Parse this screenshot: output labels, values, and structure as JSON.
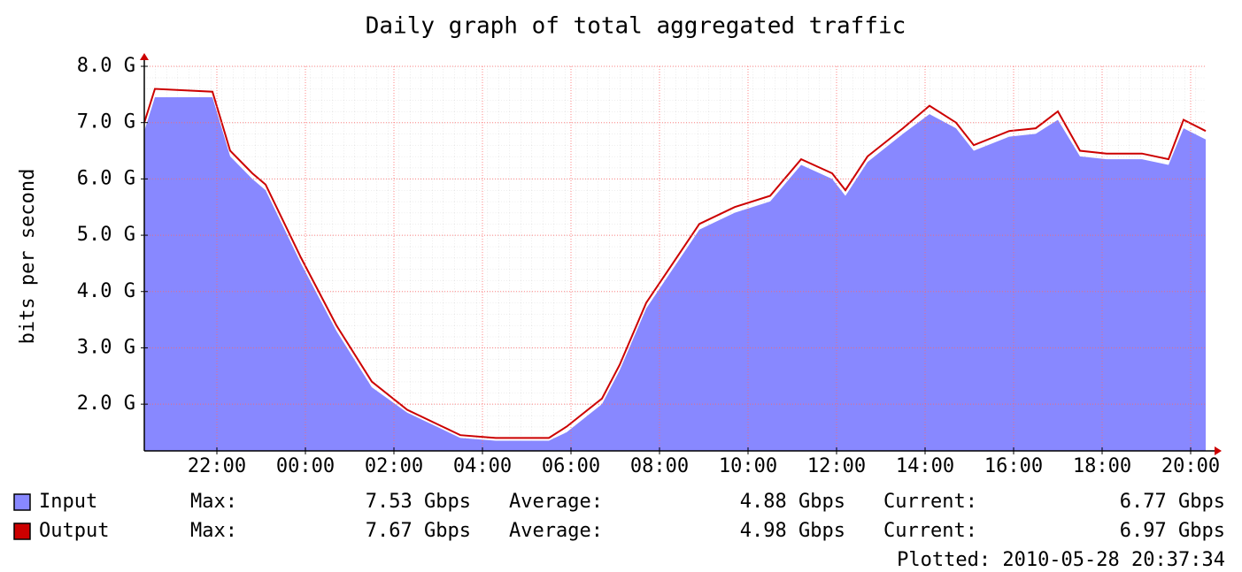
{
  "chart_data": {
    "type": "area-line",
    "title": "Daily graph of total aggregated traffic",
    "y_label": "bits per second",
    "x": [
      20.36,
      20.6,
      21.9,
      22.3,
      22.8,
      23.1,
      23.9,
      24.7,
      25.5,
      26.3,
      27.1,
      27.5,
      28.3,
      29.5,
      29.9,
      30.7,
      31.1,
      31.7,
      32.3,
      32.9,
      33.7,
      34.5,
      35.2,
      35.9,
      36.2,
      36.7,
      37.5,
      38.1,
      38.7,
      39.1,
      39.9,
      40.5,
      41.0,
      41.5,
      42.1,
      42.9,
      43.5,
      43.84,
      44.34
    ],
    "series": [
      {
        "name": "Input",
        "color": "#8888ff",
        "style": "area",
        "values": [
          6.85,
          7.45,
          7.45,
          6.4,
          6.0,
          5.8,
          4.5,
          3.3,
          2.3,
          1.85,
          1.55,
          1.4,
          1.35,
          1.35,
          1.5,
          2.0,
          2.6,
          3.7,
          4.4,
          5.1,
          5.4,
          5.6,
          6.25,
          6.0,
          5.7,
          6.3,
          6.8,
          7.15,
          6.9,
          6.5,
          6.75,
          6.8,
          7.05,
          6.4,
          6.35,
          6.35,
          6.25,
          6.9,
          6.7
        ],
        "stats": [
          "Max:",
          "7.53 Gbps",
          "Average:",
          "4.88 Gbps",
          "Current:",
          "6.77 Gbps"
        ]
      },
      {
        "name": "Output",
        "color": "#cc0000",
        "style": "line",
        "values": [
          7.0,
          7.6,
          7.55,
          6.5,
          6.1,
          5.9,
          4.6,
          3.4,
          2.4,
          1.9,
          1.6,
          1.45,
          1.4,
          1.4,
          1.6,
          2.1,
          2.7,
          3.8,
          4.5,
          5.2,
          5.5,
          5.7,
          6.35,
          6.1,
          5.8,
          6.4,
          6.9,
          7.3,
          7.0,
          6.6,
          6.85,
          6.9,
          7.2,
          6.5,
          6.45,
          6.45,
          6.35,
          7.05,
          6.85
        ],
        "stats": [
          "Max:",
          "7.67 Gbps",
          "Average:",
          "4.98 Gbps",
          "Current:",
          "6.97 Gbps"
        ]
      }
    ],
    "xlim": [
      20.36,
      44.34
    ],
    "xticks": [
      {
        "value": 22,
        "label": "22:00"
      },
      {
        "value": 24,
        "label": "00:00"
      },
      {
        "value": 26,
        "label": "02:00"
      },
      {
        "value": 28,
        "label": "04:00"
      },
      {
        "value": 30,
        "label": "06:00"
      },
      {
        "value": 32,
        "label": "08:00"
      },
      {
        "value": 34,
        "label": "10:00"
      },
      {
        "value": 36,
        "label": "12:00"
      },
      {
        "value": 38,
        "label": "14:00"
      },
      {
        "value": 40,
        "label": "16:00"
      },
      {
        "value": 42,
        "label": "18:00"
      },
      {
        "value": 44,
        "label": "20:00"
      }
    ],
    "ylim": [
      1.17,
      8.0
    ],
    "yticks": [
      {
        "value": 2,
        "label": "2.0 G"
      },
      {
        "value": 3,
        "label": "3.0 G"
      },
      {
        "value": 4,
        "label": "4.0 G"
      },
      {
        "value": 5,
        "label": "5.0 G"
      },
      {
        "value": 6,
        "label": "6.0 G"
      },
      {
        "value": 7,
        "label": "7.0 G"
      },
      {
        "value": 8,
        "label": "8.0 G"
      }
    ],
    "grid": true,
    "footer": "Plotted: 2010-05-28 20:37:34"
  }
}
